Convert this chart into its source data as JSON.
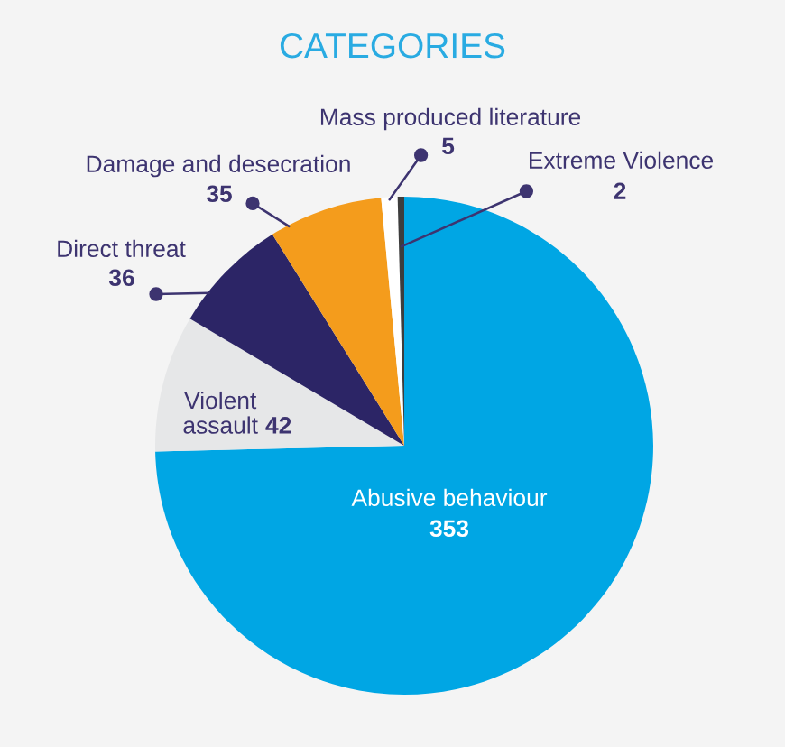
{
  "chart_data": {
    "type": "pie",
    "title": "CATEGORIES",
    "categories": [
      "Abusive behaviour",
      "Violent assault",
      "Direct threat",
      "Damage and desecration",
      "Mass produced literature",
      "Extreme Violence"
    ],
    "values": [
      353,
      42,
      36,
      35,
      5,
      2
    ],
    "colors": [
      "#00a6e4",
      "#e6e7e8",
      "#2c2566",
      "#f49c1c",
      "#ffffff",
      "#3d3d3d"
    ],
    "data_labels": true
  }
}
